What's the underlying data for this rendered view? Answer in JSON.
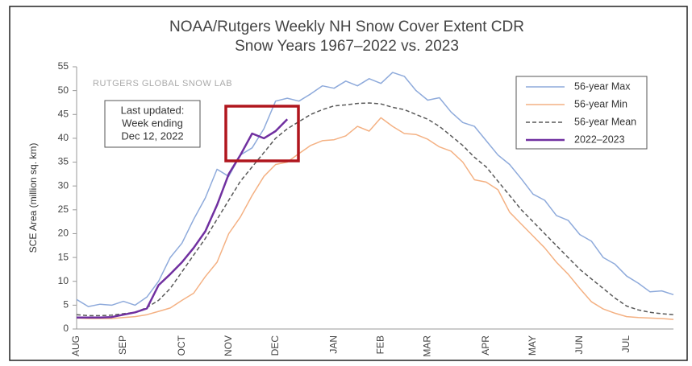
{
  "chart_data": {
    "type": "line",
    "title": "NOAA/Rutgers Weekly NH Snow Cover Extent CDR",
    "subtitle": "Snow Years 1967–2022 vs. 2023",
    "y_label": "SCE Area (million sq. km)",
    "annotations": [
      "RUTGERS GLOBAL SNOW LAB",
      "Last updated:",
      "Week ending",
      "Dec 12, 2022"
    ],
    "categories": [
      "AUG",
      null,
      null,
      null,
      "SEP",
      null,
      null,
      null,
      null,
      "OCT",
      null,
      null,
      null,
      "NOV",
      null,
      null,
      null,
      "DEC",
      null,
      null,
      null,
      null,
      "JAN",
      null,
      null,
      null,
      "FEB",
      null,
      null,
      null,
      "MAR",
      null,
      null,
      null,
      null,
      "APR",
      null,
      null,
      null,
      "MAY",
      null,
      null,
      null,
      "JUN",
      null,
      null,
      null,
      "JUL",
      null,
      null,
      null,
      null
    ],
    "ylim": [
      0,
      55
    ],
    "yticks": [
      0,
      5,
      10,
      15,
      20,
      25,
      30,
      35,
      40,
      45,
      50,
      55
    ],
    "grid": false,
    "legend": "upper right",
    "series": [
      {
        "name": "56-year Max",
        "color": "#8eaadb",
        "dash": "solid",
        "values": [
          6.2,
          4.7,
          5.2,
          5.0,
          5.8,
          5.0,
          6.7,
          10,
          15,
          18,
          23,
          27.5,
          33.5,
          32,
          36.5,
          38,
          42,
          47.8,
          48.4,
          47.8,
          49.3,
          51,
          50.5,
          52,
          51,
          52.5,
          51.5,
          53.8,
          53,
          50,
          48,
          48.5,
          45.5,
          43.3,
          42.5,
          39.5,
          36.5,
          34.5,
          31.5,
          28.3,
          27,
          23.8,
          22.8,
          19.8,
          18.4,
          15,
          13.6,
          11.1,
          9.6,
          7.8,
          8,
          7.2
        ]
      },
      {
        "name": "56-year Min",
        "color": "#f4b183",
        "dash": "solid",
        "values": [
          2.3,
          2.2,
          2.2,
          2.2,
          2.4,
          2.6,
          3.0,
          3.7,
          4.4,
          6,
          7.5,
          11,
          14,
          20,
          23.5,
          28,
          32,
          34.5,
          35,
          36.8,
          38.5,
          39.5,
          39.7,
          40.5,
          42.5,
          41.5,
          44.3,
          42.5,
          41,
          40.8,
          39.8,
          38.2,
          37.3,
          35,
          31.3,
          30.8,
          29.2,
          24.5,
          22,
          19.5,
          17,
          14,
          11.5,
          8.5,
          5.7,
          4.2,
          3.3,
          2.6,
          2.4,
          2.3,
          2.2,
          2.0
        ]
      },
      {
        "name": "56-year Mean",
        "color": "#595959",
        "dash": "dashed",
        "values": [
          3,
          2.8,
          2.8,
          2.9,
          3.2,
          3.5,
          4.5,
          6,
          8.5,
          12,
          15.5,
          19,
          23,
          27,
          31,
          34,
          37,
          40,
          42,
          43.5,
          45,
          46,
          46.8,
          47,
          47.3,
          47.4,
          47.2,
          46.5,
          46,
          45,
          44,
          42.5,
          40.5,
          38.5,
          36,
          34,
          31,
          28,
          25,
          22.5,
          20,
          17.5,
          15,
          12.5,
          10.5,
          8.5,
          6.5,
          4.8,
          4,
          3.5,
          3.2,
          3.0
        ]
      },
      {
        "name": "2022–2023",
        "color": "#7030a0",
        "dash": "solid",
        "width": 2.5,
        "values": [
          2.4,
          2.4,
          2.4,
          2.5,
          3,
          3.5,
          4.3,
          9.2,
          11.5,
          14,
          17,
          20.5,
          26,
          32.5,
          36.5,
          41,
          40,
          41.5,
          44,
          null,
          null,
          null,
          null,
          null,
          null,
          null,
          null,
          null,
          null,
          null,
          null,
          null,
          null,
          null,
          null,
          null,
          null,
          null,
          null,
          null,
          null,
          null,
          null,
          null,
          null,
          null,
          null,
          null,
          null,
          null,
          null,
          null
        ]
      }
    ]
  }
}
